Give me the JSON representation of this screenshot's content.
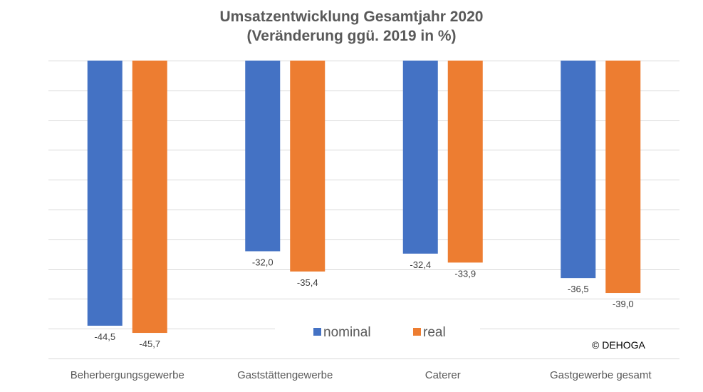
{
  "chart_data": {
    "type": "bar",
    "title": "Umsatzentwicklung Gesamtjahr 2020",
    "subtitle": "(Veränderung ggü. 2019 in %)",
    "categories": [
      "Beherbergungsgewerbe",
      "Gaststättengewerbe",
      "Caterer",
      "Gastgewerbe gesamt"
    ],
    "series": [
      {
        "name": "nominal",
        "values": [
          -44.5,
          -32.0,
          -32.4,
          -36.5
        ],
        "labels": [
          "-44,5",
          "-32,0",
          "-32,4",
          "-36,5"
        ],
        "color": "#4472C4"
      },
      {
        "name": "real",
        "values": [
          -45.7,
          -35.4,
          -33.9,
          -39.0
        ],
        "labels": [
          "-45,7",
          "-35,4",
          "-33,9",
          "-39,0"
        ],
        "color": "#ED7D31"
      }
    ],
    "ylim": [
      -50,
      0
    ],
    "grid": true,
    "legend": "bottom-center",
    "gridline_color": "#D9D9D9"
  },
  "source_note": "© DEHOGA"
}
